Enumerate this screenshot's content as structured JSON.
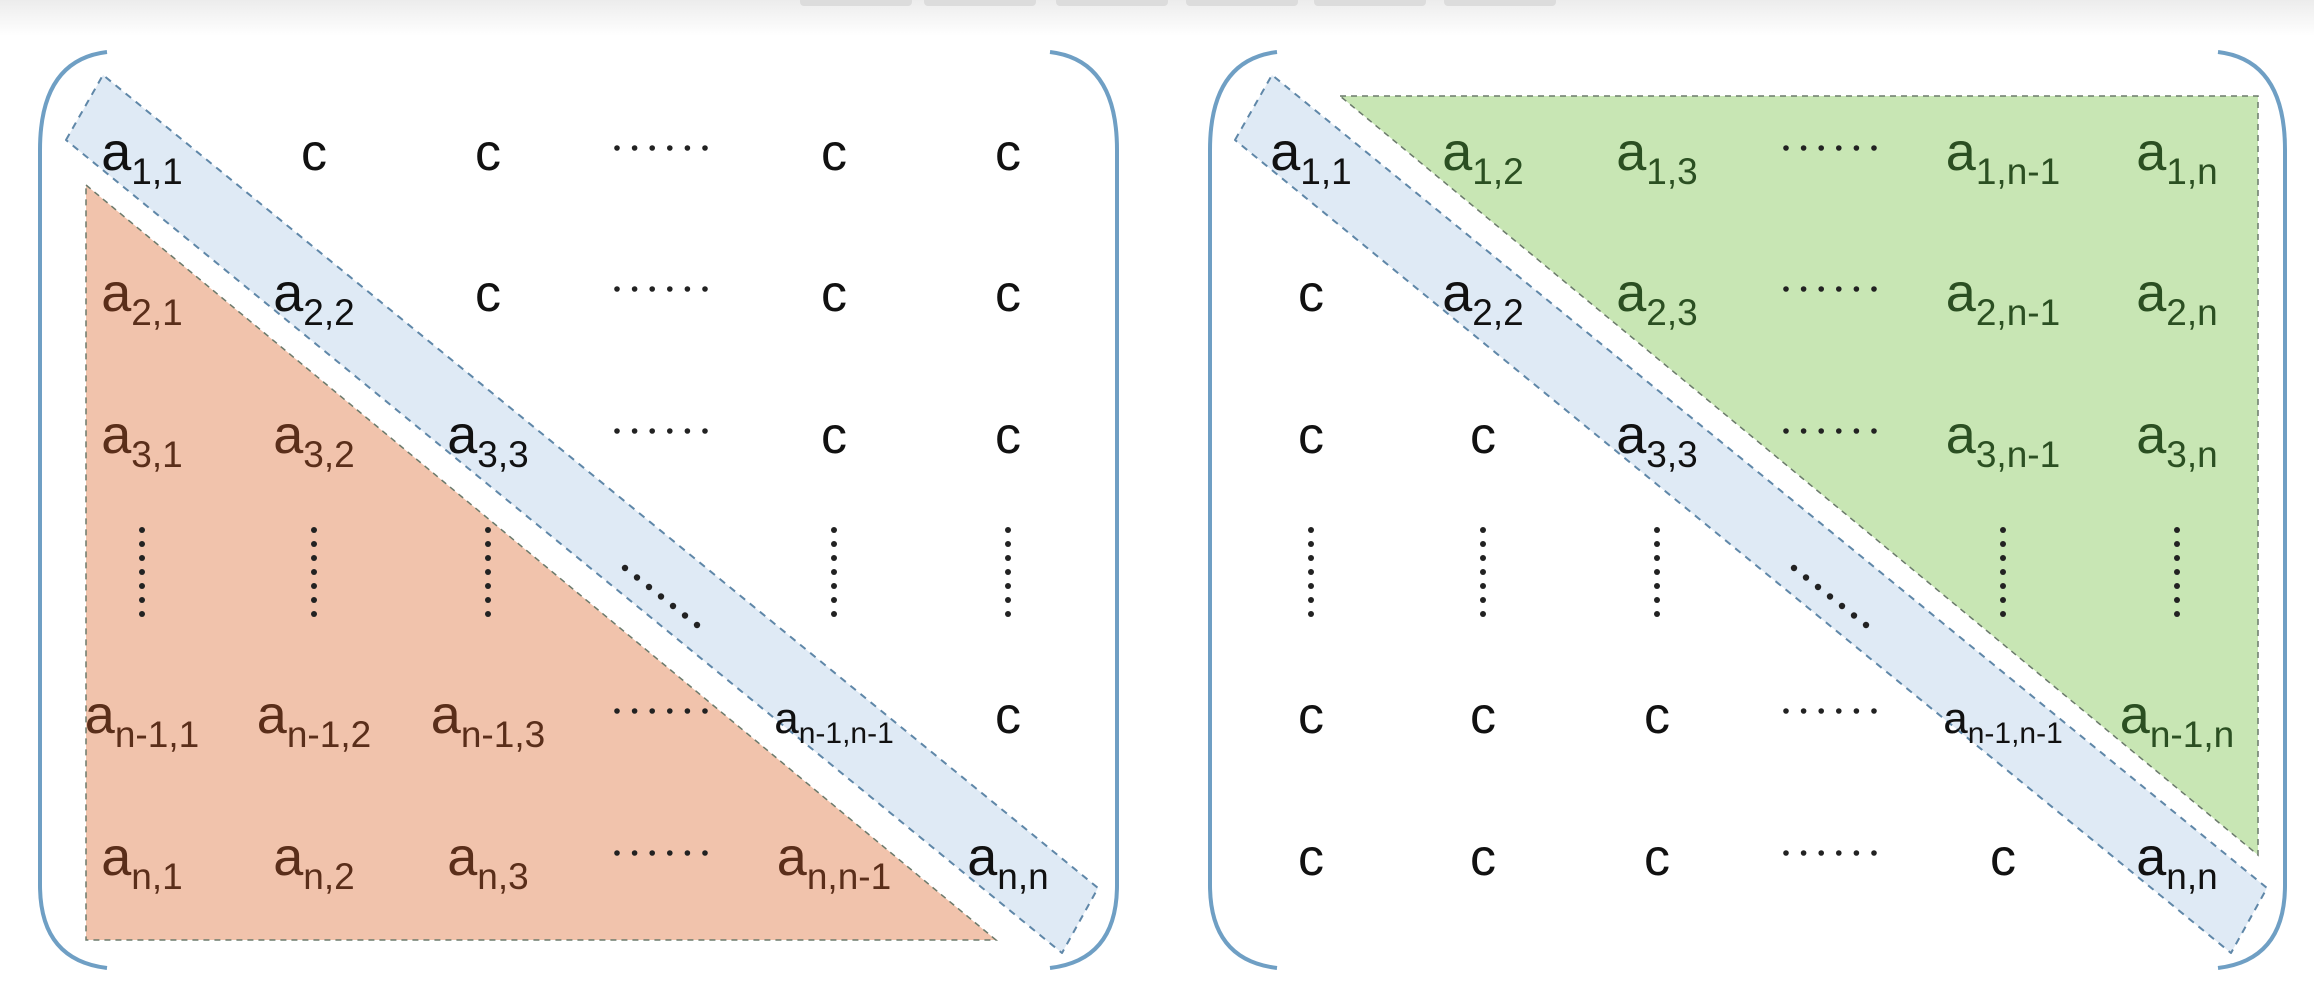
{
  "toolbar": {
    "tabs": [
      "",
      "",
      "",
      "",
      "",
      ""
    ]
  },
  "colors": {
    "bracket": "#6f9fc4",
    "diagonal_fill": "#dfeaf5",
    "diagonal_stroke": "#5f87a8",
    "lower_fill": "#f1c3ac",
    "lower_text": "#5a2e1a",
    "upper_fill": "#c8e6b4",
    "upper_text": "#2b4f22",
    "plain_text": "#111111",
    "dots": "#222222"
  },
  "matrices": [
    {
      "name": "lower-triangular-matrix",
      "highlight": "lower",
      "rows": [
        [
          {
            "t": "a",
            "s": "1,1",
            "k": "diag"
          },
          {
            "t": "c"
          },
          {
            "t": "c"
          },
          {
            "t": "h"
          },
          {
            "t": "c"
          },
          {
            "t": "c"
          }
        ],
        [
          {
            "t": "a",
            "s": "2,1",
            "k": "tri"
          },
          {
            "t": "a",
            "s": "2,2",
            "k": "diag"
          },
          {
            "t": "c"
          },
          {
            "t": "h"
          },
          {
            "t": "c"
          },
          {
            "t": "c"
          }
        ],
        [
          {
            "t": "a",
            "s": "3,1",
            "k": "tri"
          },
          {
            "t": "a",
            "s": "3,2",
            "k": "tri"
          },
          {
            "t": "a",
            "s": "3,3",
            "k": "diag"
          },
          {
            "t": "h"
          },
          {
            "t": "c"
          },
          {
            "t": "c"
          }
        ],
        [
          {
            "t": "v"
          },
          {
            "t": "v"
          },
          {
            "t": "v"
          },
          {
            "t": "d"
          },
          {
            "t": "v"
          },
          {
            "t": "v"
          }
        ],
        [
          {
            "t": "a",
            "s": "n-1,1",
            "k": "tri"
          },
          {
            "t": "a",
            "s": "n-1,2",
            "k": "tri"
          },
          {
            "t": "a",
            "s": "n-1,3",
            "k": "tri"
          },
          {
            "t": "h"
          },
          {
            "t": "a",
            "s": "n-1,n-1",
            "k": "diag",
            "small": true
          },
          {
            "t": "c"
          }
        ],
        [
          {
            "t": "a",
            "s": "n,1",
            "k": "tri"
          },
          {
            "t": "a",
            "s": "n,2",
            "k": "tri"
          },
          {
            "t": "a",
            "s": "n,3",
            "k": "tri"
          },
          {
            "t": "h"
          },
          {
            "t": "a",
            "s": "n,n-1",
            "k": "tri"
          },
          {
            "t": "a",
            "s": "n,n",
            "k": "diag"
          }
        ]
      ]
    },
    {
      "name": "upper-triangular-matrix",
      "highlight": "upper",
      "rows": [
        [
          {
            "t": "a",
            "s": "1,1",
            "k": "diag"
          },
          {
            "t": "a",
            "s": "1,2",
            "k": "tri"
          },
          {
            "t": "a",
            "s": "1,3",
            "k": "tri"
          },
          {
            "t": "h"
          },
          {
            "t": "a",
            "s": "1,n-1",
            "k": "tri"
          },
          {
            "t": "a",
            "s": "1,n",
            "k": "tri"
          }
        ],
        [
          {
            "t": "c"
          },
          {
            "t": "a",
            "s": "2,2",
            "k": "diag"
          },
          {
            "t": "a",
            "s": "2,3",
            "k": "tri"
          },
          {
            "t": "h"
          },
          {
            "t": "a",
            "s": "2,n-1",
            "k": "tri"
          },
          {
            "t": "a",
            "s": "2,n",
            "k": "tri"
          }
        ],
        [
          {
            "t": "c"
          },
          {
            "t": "c"
          },
          {
            "t": "a",
            "s": "3,3",
            "k": "diag"
          },
          {
            "t": "h"
          },
          {
            "t": "a",
            "s": "3,n-1",
            "k": "tri"
          },
          {
            "t": "a",
            "s": "3,n",
            "k": "tri"
          }
        ],
        [
          {
            "t": "v"
          },
          {
            "t": "v"
          },
          {
            "t": "v"
          },
          {
            "t": "d"
          },
          {
            "t": "v"
          },
          {
            "t": "v"
          }
        ],
        [
          {
            "t": "c"
          },
          {
            "t": "c"
          },
          {
            "t": "c"
          },
          {
            "t": "h"
          },
          {
            "t": "a",
            "s": "n-1,n-1",
            "k": "diag",
            "small": true
          },
          {
            "t": "a",
            "s": "n-1,n",
            "k": "tri"
          }
        ],
        [
          {
            "t": "c"
          },
          {
            "t": "c"
          },
          {
            "t": "c"
          },
          {
            "t": "h"
          },
          {
            "t": "c"
          },
          {
            "t": "a",
            "s": "n,n",
            "k": "diag"
          }
        ]
      ]
    }
  ]
}
